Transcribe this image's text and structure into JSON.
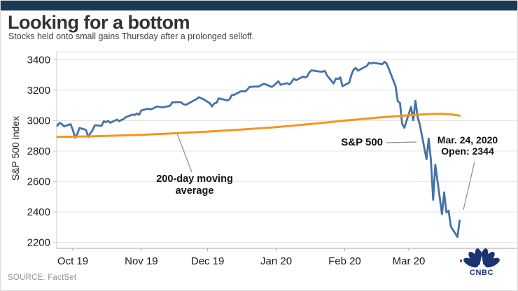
{
  "header": {
    "title": "Looking for a bottom",
    "subtitle": "Stocks held onto small gains Thursday after a prolonged selloff."
  },
  "annotations": {
    "sp500_label": "S&P 500",
    "ma_label": "200-day moving average",
    "callout_line1": "Mar. 24, 2020",
    "callout_line2": "Open: 2344"
  },
  "footer": {
    "source_label": "SOURCE: FactSet",
    "logo_text": "CNBC"
  },
  "colors": {
    "topbar": "#1b3a57",
    "sp500_line": "#4572a7",
    "ma_line": "#f7941e",
    "gridline": "#e4e4e4",
    "axis": "#c8c8c8",
    "baseline": "#a6a6a6",
    "leader": "#8c8c8c",
    "tick_text": "#1a1a1a",
    "logo_navy": "#1c3272"
  },
  "chart_data": {
    "type": "line",
    "ylabel": "S&P 500 index",
    "x_unit": "days since Oct 1, 2019",
    "xlim_days": [
      -8,
      201
    ],
    "ylim": [
      2160,
      3450
    ],
    "grid": true,
    "y_ticks": [
      3400,
      3200,
      3000,
      2800,
      2600,
      2400,
      2200
    ],
    "x_ticks": [
      {
        "label": "Oct 19",
        "d": 0
      },
      {
        "label": "Nov 19",
        "d": 31
      },
      {
        "label": "Dec 19",
        "d": 61
      },
      {
        "label": "Jan 20",
        "d": 92
      },
      {
        "label": "Feb 20",
        "d": 123
      },
      {
        "label": "Mar 20",
        "d": 152
      }
    ],
    "series": [
      {
        "name": "S&P 500",
        "color": "#4572a7",
        "width": 2.8,
        "points": [
          [
            -7,
            2967
          ],
          [
            -6,
            2985
          ],
          [
            -5,
            2978
          ],
          [
            -4,
            2962
          ],
          [
            -1,
            2977
          ],
          [
            0,
            2940
          ],
          [
            1,
            2888
          ],
          [
            2,
            2911
          ],
          [
            3,
            2952
          ],
          [
            6,
            2939
          ],
          [
            7,
            2893
          ],
          [
            8,
            2919
          ],
          [
            9,
            2938
          ],
          [
            10,
            2970
          ],
          [
            13,
            2966
          ],
          [
            14,
            2996
          ],
          [
            15,
            2990
          ],
          [
            16,
            2998
          ],
          [
            17,
            2986
          ],
          [
            20,
            3007
          ],
          [
            21,
            2996
          ],
          [
            22,
            3005
          ],
          [
            23,
            3010
          ],
          [
            24,
            3023
          ],
          [
            27,
            3039
          ],
          [
            28,
            3037
          ],
          [
            29,
            3047
          ],
          [
            30,
            3038
          ],
          [
            31,
            3067
          ],
          [
            34,
            3078
          ],
          [
            35,
            3075
          ],
          [
            36,
            3077
          ],
          [
            37,
            3085
          ],
          [
            38,
            3093
          ],
          [
            41,
            3087
          ],
          [
            42,
            3092
          ],
          [
            43,
            3094
          ],
          [
            44,
            3097
          ],
          [
            45,
            3120
          ],
          [
            48,
            3122
          ],
          [
            49,
            3120
          ],
          [
            50,
            3108
          ],
          [
            51,
            3104
          ],
          [
            52,
            3110
          ],
          [
            55,
            3134
          ],
          [
            56,
            3141
          ],
          [
            57,
            3154
          ],
          [
            59,
            3141
          ],
          [
            62,
            3114
          ],
          [
            63,
            3093
          ],
          [
            64,
            3113
          ],
          [
            65,
            3117
          ],
          [
            66,
            3146
          ],
          [
            69,
            3136
          ],
          [
            70,
            3132
          ],
          [
            71,
            3142
          ],
          [
            72,
            3169
          ],
          [
            73,
            3169
          ],
          [
            76,
            3192
          ],
          [
            77,
            3193
          ],
          [
            78,
            3191
          ],
          [
            79,
            3205
          ],
          [
            80,
            3221
          ],
          [
            83,
            3224
          ],
          [
            84,
            3223
          ],
          [
            86,
            3240
          ],
          [
            87,
            3240
          ],
          [
            90,
            3221
          ],
          [
            91,
            3231
          ],
          [
            93,
            3258
          ],
          [
            94,
            3235
          ],
          [
            97,
            3246
          ],
          [
            98,
            3237
          ],
          [
            99,
            3253
          ],
          [
            100,
            3275
          ],
          [
            101,
            3265
          ],
          [
            104,
            3288
          ],
          [
            105,
            3283
          ],
          [
            106,
            3289
          ],
          [
            107,
            3317
          ],
          [
            108,
            3330
          ],
          [
            112,
            3321
          ],
          [
            113,
            3322
          ],
          [
            114,
            3326
          ],
          [
            115,
            3296
          ],
          [
            118,
            3244
          ],
          [
            119,
            3276
          ],
          [
            120,
            3273
          ],
          [
            121,
            3284
          ],
          [
            122,
            3226
          ],
          [
            125,
            3249
          ],
          [
            126,
            3298
          ],
          [
            127,
            3335
          ],
          [
            128,
            3346
          ],
          [
            129,
            3328
          ],
          [
            132,
            3352
          ],
          [
            133,
            3358
          ],
          [
            134,
            3380
          ],
          [
            135,
            3374
          ],
          [
            136,
            3380
          ],
          [
            140,
            3370
          ],
          [
            141,
            3386
          ],
          [
            142,
            3373
          ],
          [
            143,
            3338
          ],
          [
            146,
            3226
          ],
          [
            147,
            3128
          ],
          [
            148,
            3116
          ],
          [
            149,
            2979
          ],
          [
            150,
            2954
          ],
          [
            153,
            3090
          ],
          [
            154,
            3003
          ],
          [
            155,
            3130
          ],
          [
            156,
            3024
          ],
          [
            157,
            2972
          ],
          [
            160,
            2747
          ],
          [
            161,
            2882
          ],
          [
            162,
            2741
          ],
          [
            163,
            2481
          ],
          [
            164,
            2711
          ],
          [
            167,
            2386
          ],
          [
            168,
            2529
          ],
          [
            169,
            2398
          ],
          [
            170,
            2409
          ],
          [
            171,
            2305
          ],
          [
            174,
            2237
          ],
          [
            175,
            2344
          ]
        ]
      },
      {
        "name": "200-day moving average",
        "color": "#f7941e",
        "width": 3,
        "points": [
          [
            -7,
            2893
          ],
          [
            10,
            2898
          ],
          [
            31,
            2907
          ],
          [
            45,
            2916
          ],
          [
            61,
            2928
          ],
          [
            76,
            2941
          ],
          [
            92,
            2957
          ],
          [
            107,
            2977
          ],
          [
            123,
            3000
          ],
          [
            138,
            3020
          ],
          [
            150,
            3033
          ],
          [
            157,
            3040
          ],
          [
            163,
            3044
          ],
          [
            167,
            3045
          ],
          [
            171,
            3041
          ],
          [
            175,
            3033
          ]
        ]
      }
    ]
  }
}
